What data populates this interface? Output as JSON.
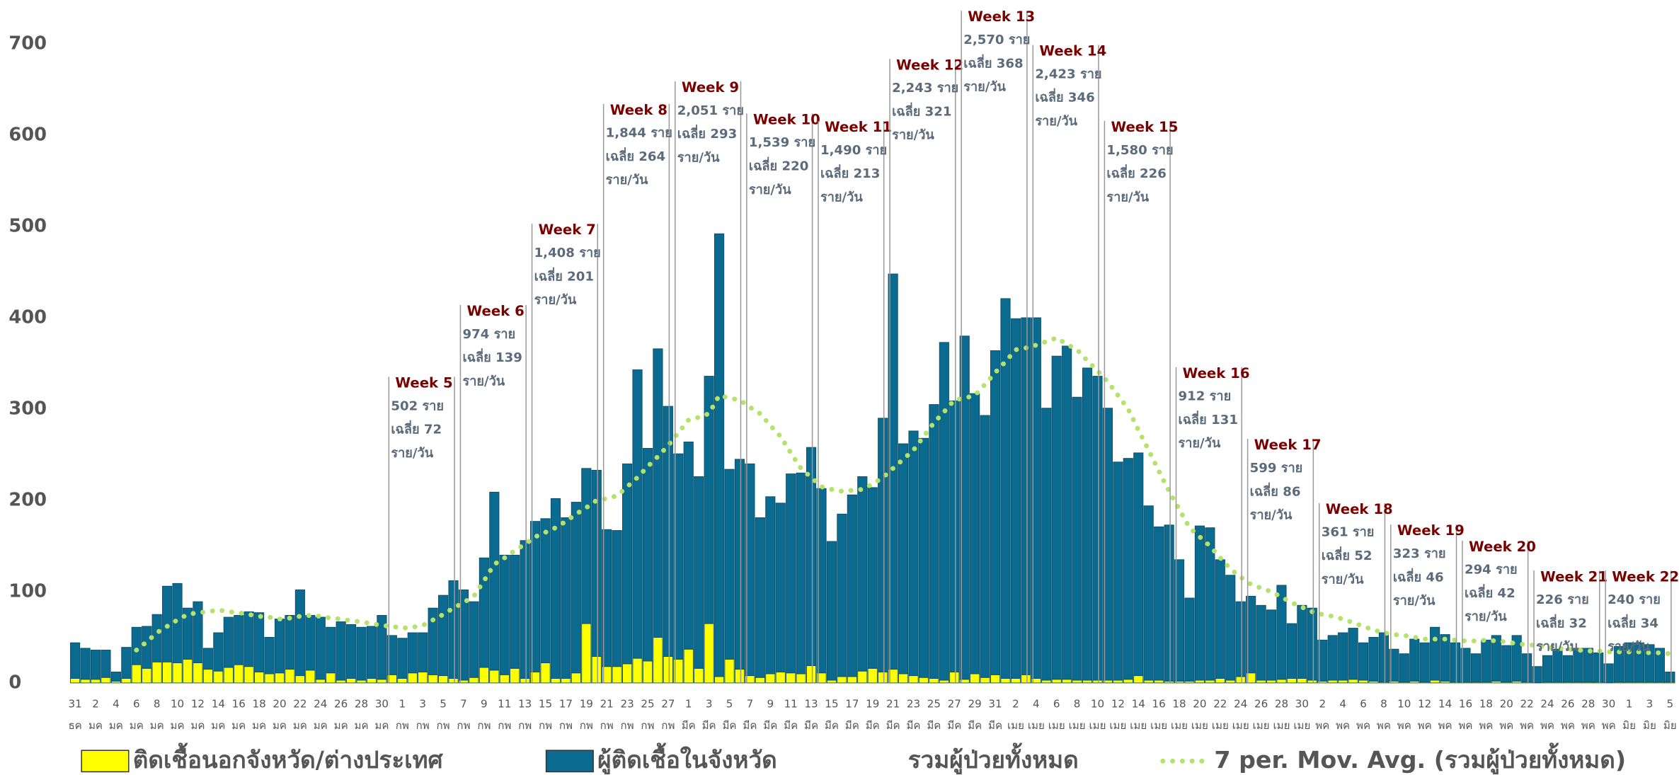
{
  "chart_data": {
    "type": "bar",
    "stacked": true,
    "categories": [
      "31",
      null,
      "2",
      null,
      "4",
      null,
      "6",
      null,
      "8",
      null,
      "10",
      null,
      "12",
      null,
      "14",
      null,
      "16",
      null,
      "18",
      null,
      "20",
      null,
      "22",
      null,
      "24",
      null,
      "26",
      null,
      "28",
      null,
      "30",
      null,
      "1",
      null,
      "3",
      null,
      "5",
      null,
      "7",
      null,
      "9",
      null,
      "11",
      null,
      "13",
      null,
      "15",
      null,
      "17",
      null,
      "19",
      null,
      "21",
      null,
      "23",
      null,
      "25",
      null,
      "27",
      null,
      "1",
      null,
      "3",
      null,
      "5",
      null,
      "7",
      null,
      "9",
      null,
      "11",
      null,
      "13",
      null,
      "15",
      null,
      "17",
      null,
      "19",
      null,
      "21",
      null,
      "23",
      null,
      "25",
      null,
      "27",
      null,
      "29",
      null,
      "31",
      null,
      "2",
      null,
      "4",
      null,
      "6",
      null,
      "8",
      null,
      "10",
      null,
      "12",
      null,
      "14",
      null,
      "16",
      null,
      "18",
      null,
      "20",
      null,
      "22",
      null,
      "24",
      null,
      "26",
      null,
      "28",
      null,
      "30",
      null,
      "2",
      null,
      "4",
      null,
      "6",
      null,
      "8",
      null,
      "10",
      null,
      "12",
      null,
      "14",
      null,
      "16",
      null,
      "18",
      null,
      "20",
      null,
      "22",
      null,
      "24",
      null,
      "26",
      null,
      "28",
      null,
      "30",
      null,
      "1",
      null,
      "3",
      null,
      "5"
    ],
    "months": [
      "ธค",
      null,
      "มค",
      null,
      "มค",
      null,
      "มค",
      null,
      "มค",
      null,
      "มค",
      null,
      "มค",
      null,
      "มค",
      null,
      "มค",
      null,
      "มค",
      null,
      "มค",
      null,
      "มค",
      null,
      "มค",
      null,
      "มค",
      null,
      "มค",
      null,
      "มค",
      null,
      "กพ",
      null,
      "กพ",
      null,
      "กพ",
      null,
      "กพ",
      null,
      "กพ",
      null,
      "กพ",
      null,
      "กพ",
      null,
      "กพ",
      null,
      "กพ",
      null,
      "กพ",
      null,
      "กพ",
      null,
      "กพ",
      null,
      "กพ",
      null,
      "กพ",
      null,
      "มีค",
      null,
      "มีค",
      null,
      "มีค",
      null,
      "มีค",
      null,
      "มีค",
      null,
      "มีค",
      null,
      "มีค",
      null,
      "มีค",
      null,
      "มีค",
      null,
      "มีค",
      null,
      "มีค",
      null,
      "มีค",
      null,
      "มีค",
      null,
      "มีค",
      null,
      "มีค",
      null,
      "มีค",
      null,
      "เมย",
      null,
      "เมย",
      null,
      "เมย",
      null,
      "เมย",
      null,
      "เมย",
      null,
      "เมย",
      null,
      "เมย",
      null,
      "เมย",
      null,
      "เมย",
      null,
      "เมย",
      null,
      "เมย",
      null,
      "เมย",
      null,
      "เมย",
      null,
      "เมย",
      null,
      "เมย",
      null,
      "พค",
      null,
      "พค",
      null,
      "พค",
      null,
      "พค",
      null,
      "พค",
      null,
      "พค",
      null,
      "พค",
      null,
      "พค",
      null,
      "พค",
      null,
      "พค",
      null,
      "พค",
      null,
      "พค",
      null,
      "พค",
      null,
      "พค",
      null,
      "พค",
      null,
      "มิย",
      null,
      "มิย",
      null,
      "มิย"
    ],
    "series": [
      {
        "name": "ติดเชื้อนอกจังหวัด/ต่างประเทศ",
        "color": "#ffff00",
        "values": [
          5,
          4,
          4,
          6,
          2,
          5,
          20,
          16,
          23,
          23,
          22,
          26,
          22,
          15,
          13,
          17,
          20,
          18,
          12,
          10,
          11,
          15,
          8,
          14,
          4,
          11,
          3,
          5,
          3,
          5,
          4,
          9,
          5,
          11,
          12,
          9,
          8,
          5,
          3,
          6,
          17,
          14,
          9,
          16,
          5,
          12,
          22,
          5,
          5,
          11,
          65,
          29,
          18,
          18,
          21,
          27,
          24,
          50,
          29,
          26,
          37,
          16,
          65,
          7,
          26,
          15,
          8,
          6,
          10,
          12,
          11,
          10,
          19,
          11,
          3,
          7,
          7,
          13,
          16,
          12,
          15,
          10,
          8,
          6,
          5,
          3,
          12,
          4,
          10,
          6,
          9,
          5,
          5,
          9,
          5,
          3,
          4,
          4,
          3,
          3,
          3,
          3,
          3,
          4,
          8,
          3,
          3,
          2,
          2,
          2,
          3,
          3,
          5,
          3,
          7,
          11,
          3,
          3,
          4,
          5,
          5,
          3,
          2,
          3,
          3,
          4,
          3,
          2,
          1,
          2,
          1,
          2,
          1,
          3,
          2,
          1,
          1,
          1,
          1,
          2,
          1,
          2,
          1,
          0,
          1,
          1,
          1,
          1,
          1,
          1,
          0,
          1,
          1,
          1,
          1,
          1,
          1
        ]
      },
      {
        "name": "ผู้ติดเชื้อในจังหวัด",
        "color": "#0b6a8f",
        "values": [
          39,
          34,
          32,
          30,
          10,
          34,
          41,
          46,
          52,
          83,
          87,
          56,
          67,
          23,
          42,
          55,
          54,
          60,
          65,
          40,
          59,
          59,
          94,
          60,
          68,
          50,
          64,
          59,
          58,
          57,
          70,
          43,
          44,
          44,
          43,
          73,
          88,
          107,
          99,
          83,
          120,
          195,
          131,
          124,
          151,
          165,
          158,
          197,
          176,
          187,
          170,
          204,
          150,
          149,
          219,
          316,
          233,
          316,
          274,
          225,
          227,
          210,
          271,
          485,
          208,
          230,
          232,
          175,
          194,
          185,
          218,
          220,
          239,
          202,
          152,
          178,
          199,
          213,
          198,
          278,
          433,
          252,
          268,
          262,
          300,
          370,
          297,
          376,
          307,
          287,
          355,
          416,
          394,
          391,
          395,
          298,
          354,
          365,
          310,
          342,
          333,
          298,
          239,
          242,
          244,
          191,
          168,
          171,
          133,
          91,
          169,
          167,
          130,
          115,
          82,
          84,
          82,
          77,
          103,
          60,
          80,
          79,
          45,
          49,
          52,
          56,
          41,
          48,
          54,
          35,
          31,
          46,
          43,
          58,
          51,
          43,
          37,
          31,
          46,
          50,
          40,
          50,
          31,
          18,
          29,
          36,
          29,
          37,
          37,
          32,
          21,
          39,
          43,
          43,
          41,
          37,
          11
        ]
      },
      {
        "name": "7 per. Mov. Avg. (รวมผู้ป่วยทั้งหมด)",
        "type": "line",
        "color": "#b5e26a",
        "values": [
          null,
          null,
          null,
          null,
          null,
          null,
          36,
          45,
          55,
          62,
          69,
          75,
          77,
          78,
          80,
          78,
          77,
          75,
          73,
          72,
          70,
          71,
          73,
          74,
          73,
          71,
          70,
          68,
          67,
          65,
          63,
          62,
          60,
          61,
          63,
          69,
          75,
          82,
          88,
          95,
          112,
          130,
          137,
          145,
          152,
          160,
          165,
          170,
          177,
          185,
          192,
          200,
          202,
          205,
          215,
          225,
          237,
          248,
          260,
          274,
          288,
          291,
          295,
          315,
          312,
          310,
          302,
          295,
          282,
          270,
          252,
          235,
          225,
          215,
          212,
          210,
          211,
          212,
          218,
          225,
          235,
          245,
          255,
          270,
          285,
          297,
          310,
          312,
          315,
          327,
          340,
          352,
          365,
          367,
          370,
          374,
          378,
          371,
          365,
          353,
          342,
          330,
          315,
          300,
          277,
          255,
          232,
          210,
          190,
          170,
          160,
          150,
          137,
          125,
          116,
          108,
          104,
          100,
          94,
          88,
          83,
          78,
          75,
          73,
          70,
          66,
          62,
          58,
          55,
          53,
          52,
          50,
          48,
          48,
          48,
          47,
          46,
          46,
          47,
          46,
          45,
          43,
          42,
          41,
          39,
          38,
          37,
          36,
          35,
          35,
          34,
          34,
          34,
          34,
          33,
          33,
          32
        ]
      }
    ],
    "total_label": "รวมผู้ป่วยทั้งหมด",
    "ylim": [
      0,
      700
    ],
    "yticks": [
      0,
      100,
      200,
      300,
      400,
      500,
      600,
      700
    ],
    "annotations": [
      {
        "title": "Week 5",
        "lines": [
          "502 ราย",
          "เฉลี่ย 72",
          "ราย/วัน"
        ]
      },
      {
        "title": "Week 6",
        "lines": [
          "974 ราย",
          "เฉลี่ย 139",
          "ราย/วัน"
        ]
      },
      {
        "title": "Week 7",
        "lines": [
          "1,408 ราย",
          "เฉลี่ย 201",
          "ราย/วัน"
        ]
      },
      {
        "title": "Week 8",
        "lines": [
          "1,844 ราย",
          "เฉลี่ย 264",
          "ราย/วัน"
        ]
      },
      {
        "title": "Week 9",
        "lines": [
          "2,051 ราย",
          "เฉลี่ย 293",
          "ราย/วัน"
        ]
      },
      {
        "title": "Week 10",
        "lines": [
          "1,539 ราย",
          "เฉลี่ย 220",
          "ราย/วัน"
        ]
      },
      {
        "title": "Week 11",
        "lines": [
          "1,490 ราย",
          "เฉลี่ย 213",
          "ราย/วัน"
        ]
      },
      {
        "title": "Week 12",
        "lines": [
          "2,243 ราย",
          "เฉลี่ย 321",
          "ราย/วัน"
        ]
      },
      {
        "title": "Week 13",
        "lines": [
          "2,570 ราย",
          "เฉลี่ย 368",
          "ราย/วัน"
        ]
      },
      {
        "title": "Week 14",
        "lines": [
          "2,423 ราย",
          "เฉลี่ย 346",
          "ราย/วัน"
        ]
      },
      {
        "title": "Week 15",
        "lines": [
          "1,580 ราย",
          "เฉลี่ย 226",
          "ราย/วัน"
        ]
      },
      {
        "title": "Week 16",
        "lines": [
          "912 ราย",
          "เฉลี่ย 131",
          "ราย/วัน"
        ]
      },
      {
        "title": "Week 17",
        "lines": [
          "599 ราย",
          "เฉลี่ย 86",
          "ราย/วัน"
        ]
      },
      {
        "title": "Week 18",
        "lines": [
          "361 ราย",
          "เฉลี่ย 52",
          "ราย/วัน"
        ]
      },
      {
        "title": "Week 19",
        "lines": [
          "323 ราย",
          "เฉลี่ย 46",
          "ราย/วัน"
        ]
      },
      {
        "title": "Week 20",
        "lines": [
          "294 ราย",
          "เฉลี่ย 42",
          "ราย/วัน"
        ]
      },
      {
        "title": "Week 21",
        "lines": [
          "226 ราย",
          "เฉลี่ย 32",
          "ราย/วัน"
        ]
      },
      {
        "title": "Week 22",
        "lines": [
          "240 ราย",
          "เฉลี่ย 34",
          "ราย/วัน"
        ]
      }
    ]
  }
}
